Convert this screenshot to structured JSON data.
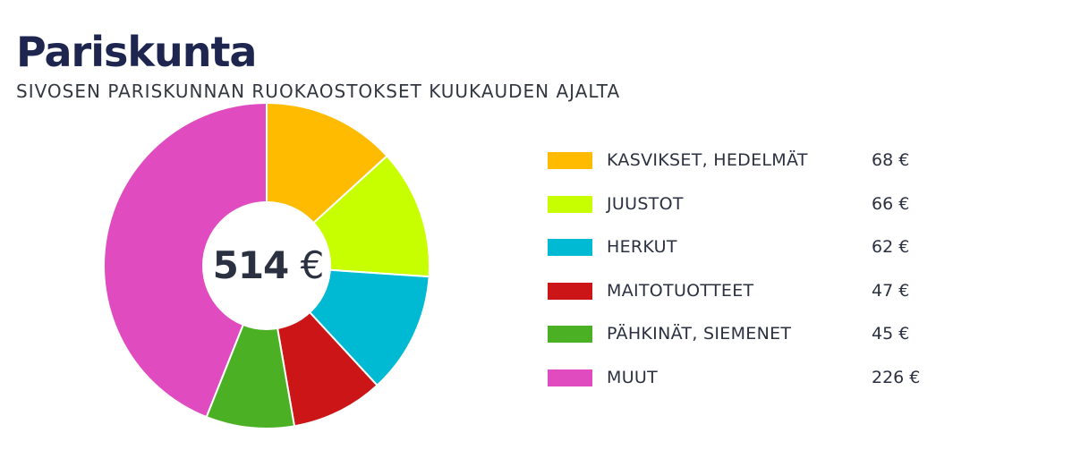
{
  "chart_data": {
    "type": "pie",
    "title": "Pariskunta",
    "subtitle": "SIVOSEN PARISKUNNAN RUOKAOSTOKSET KUUKAUDEN AJALTA",
    "total": {
      "value": "514",
      "unit": "€"
    },
    "slices": [
      {
        "label": "KASVIKSET, HEDELMÄT",
        "value": 68,
        "display": "68 €",
        "color": "#ffbb00"
      },
      {
        "label": "JUUSTOT",
        "value": 66,
        "display": "66 €",
        "color": "#c8ff00"
      },
      {
        "label": "HERKUT",
        "value": 62,
        "display": "62 €",
        "color": "#00b9d2"
      },
      {
        "label": "MAITOTUOTTEET",
        "value": 47,
        "display": "47 €",
        "color": "#cc1516"
      },
      {
        "label": "PÄHKINÄT, SIEMENET",
        "value": 45,
        "display": "45 €",
        "color": "#4cb025"
      },
      {
        "label": "MUUT",
        "value": 226,
        "display": "226 €",
        "color": "#e14bc0"
      }
    ],
    "legend_placement": "right"
  }
}
